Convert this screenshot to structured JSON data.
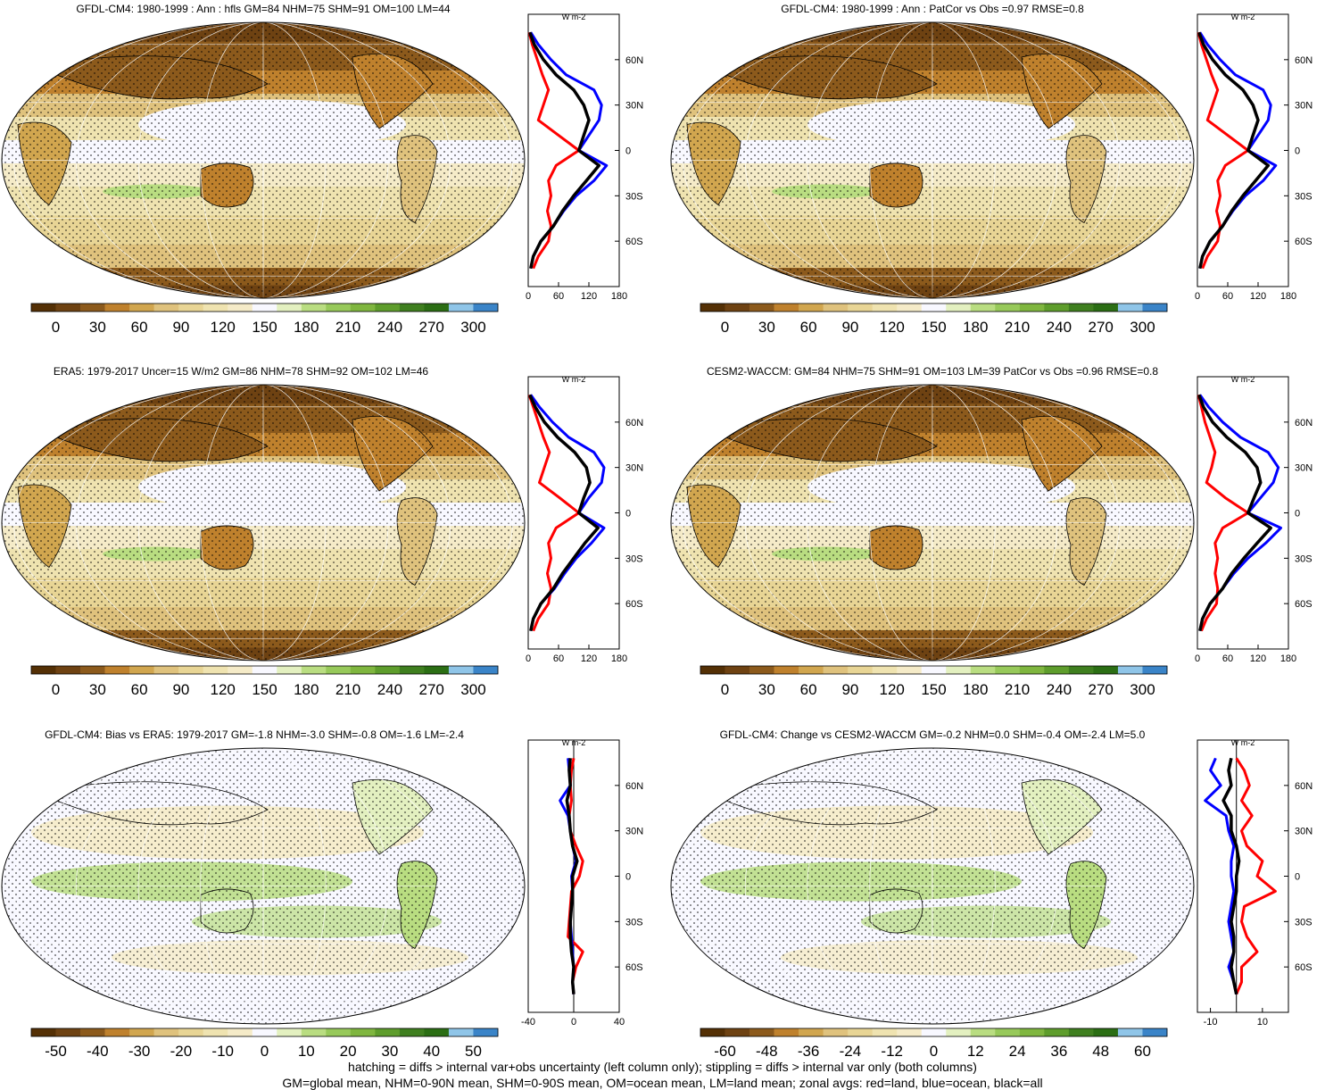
{
  "footer": {
    "line1": "hatching = diffs > internal var+obs uncertainty (left column only); stippling = diffs > internal var only (both columns)",
    "line2": "GM=global mean, NHM=0-90N mean, SHM=0-90S mean, OM=ocean mean, LM=land mean; zonal avgs: red=land, blue=ocean, black=all"
  },
  "colors": {
    "land": "#ff0000",
    "ocean": "#0000ff",
    "all": "#000000",
    "palette": [
      "#543005",
      "#6e4212",
      "#8c5a1c",
      "#bf812d",
      "#d1a64f",
      "#dfc27d",
      "#e8d595",
      "#efe3b0",
      "#f5ebc8",
      "#f8f8ff",
      "#e3f0c0",
      "#b9dd81",
      "#97c95a",
      "#7fb63f",
      "#5e9d2c",
      "#3f7f1f",
      "#2b6e14",
      "#8fc5e8",
      "#3a84c8"
    ]
  },
  "chart_data": [
    {
      "type": "heatmap",
      "title": "GFDL-CM4: 1980-1999 : Ann : hfls GM=84 NHM=75 SHM=91 OM=100 LM=44",
      "colorbar_ticks": [
        "0",
        "30",
        "60",
        "90",
        "120",
        "150",
        "180",
        "210",
        "240",
        "270",
        "300"
      ],
      "profile": {
        "type": "line",
        "unit": "W m-2",
        "xlim": [
          0,
          180
        ],
        "xticks": [
          "0",
          "60",
          "120",
          "180"
        ],
        "ylim": [
          -90,
          90
        ],
        "yticks": [
          "60N",
          "30N",
          "0",
          "30S",
          "60S"
        ],
        "lat": [
          78,
          70,
          60,
          50,
          40,
          30,
          20,
          10,
          0,
          -10,
          -20,
          -30,
          -40,
          -50,
          -60,
          -70,
          -78
        ],
        "series": [
          {
            "key": "land",
            "values": [
              2,
              8,
              18,
              28,
              40,
              30,
              20,
              60,
              100,
              55,
              40,
              45,
              38,
              45,
              40,
              20,
              10
            ]
          },
          {
            "key": "ocean",
            "values": [
              5,
              20,
              45,
              75,
              130,
              145,
              140,
              120,
              100,
              155,
              130,
              95,
              70,
              50,
              25,
              10,
              5
            ]
          },
          {
            "key": "all",
            "values": [
              3,
              12,
              30,
              55,
              90,
              110,
              120,
              110,
              100,
              140,
              115,
              90,
              68,
              50,
              25,
              10,
              5
            ]
          }
        ]
      }
    },
    {
      "type": "heatmap",
      "title": "GFDL-CM4: 1980-1999 : Ann : PatCor vs Obs =0.97 RMSE=0.8",
      "colorbar_ticks": [
        "0",
        "30",
        "60",
        "90",
        "120",
        "150",
        "180",
        "210",
        "240",
        "270",
        "300"
      ],
      "profile": {
        "type": "line",
        "unit": "W m-2",
        "xlim": [
          0,
          180
        ],
        "xticks": [
          "0",
          "60",
          "120",
          "180"
        ],
        "ylim": [
          -90,
          90
        ],
        "yticks": [
          "60N",
          "30N",
          "0",
          "30S",
          "60S"
        ],
        "lat": [
          78,
          70,
          60,
          50,
          40,
          30,
          20,
          10,
          0,
          -10,
          -20,
          -30,
          -40,
          -50,
          -60,
          -70,
          -78
        ],
        "series": [
          {
            "key": "land",
            "values": [
              2,
              8,
              18,
              28,
              40,
              30,
              20,
              60,
              100,
              55,
              40,
              45,
              38,
              45,
              40,
              20,
              10
            ]
          },
          {
            "key": "ocean",
            "values": [
              5,
              20,
              45,
              75,
              130,
              145,
              140,
              120,
              100,
              155,
              130,
              95,
              70,
              50,
              25,
              10,
              5
            ]
          },
          {
            "key": "all",
            "values": [
              3,
              12,
              30,
              55,
              90,
              110,
              120,
              110,
              100,
              140,
              115,
              90,
              68,
              50,
              25,
              10,
              5
            ]
          }
        ]
      }
    },
    {
      "type": "heatmap",
      "title": "ERA5: 1979-2017 Uncer=15 W/m2 GM=86 NHM=78 SHM=92 OM=102 LM=46",
      "colorbar_ticks": [
        "0",
        "30",
        "60",
        "90",
        "120",
        "150",
        "180",
        "210",
        "240",
        "270",
        "300"
      ],
      "profile": {
        "type": "line",
        "unit": "W m-2",
        "xlim": [
          0,
          180
        ],
        "xticks": [
          "0",
          "60",
          "120",
          "180"
        ],
        "ylim": [
          -90,
          90
        ],
        "yticks": [
          "60N",
          "30N",
          "0",
          "30S",
          "60S"
        ],
        "lat": [
          78,
          70,
          60,
          50,
          40,
          30,
          20,
          10,
          0,
          -10,
          -20,
          -30,
          -40,
          -50,
          -60,
          -70,
          -78
        ],
        "series": [
          {
            "key": "land",
            "values": [
              2,
              10,
              20,
              30,
              42,
              32,
              22,
              62,
              100,
              55,
              40,
              45,
              38,
              45,
              40,
              20,
              10
            ]
          },
          {
            "key": "ocean",
            "values": [
              5,
              22,
              48,
              80,
              130,
              150,
              145,
              120,
              100,
              150,
              125,
              95,
              72,
              52,
              25,
              10,
              5
            ]
          },
          {
            "key": "all",
            "values": [
              3,
              14,
              32,
              58,
              92,
              115,
              122,
              110,
              100,
              138,
              112,
              90,
              68,
              50,
              25,
              10,
              5
            ]
          }
        ]
      }
    },
    {
      "type": "heatmap",
      "title": "CESM2-WACCM: GM=84 NHM=75 SHM=91 OM=103 LM=39 PatCor vs Obs =0.96 RMSE=0.8",
      "colorbar_ticks": [
        "0",
        "30",
        "60",
        "90",
        "120",
        "150",
        "180",
        "210",
        "240",
        "270",
        "300"
      ],
      "profile": {
        "type": "line",
        "unit": "W m-2",
        "xlim": [
          0,
          180
        ],
        "xticks": [
          "0",
          "60",
          "120",
          "180"
        ],
        "ylim": [
          -90,
          90
        ],
        "yticks": [
          "60N",
          "30N",
          "0",
          "30S",
          "60S"
        ],
        "lat": [
          78,
          70,
          60,
          50,
          40,
          30,
          20,
          10,
          0,
          -10,
          -20,
          -30,
          -40,
          -50,
          -60,
          -70,
          -78
        ],
        "series": [
          {
            "key": "land",
            "values": [
              2,
              8,
              15,
              25,
              35,
              28,
              18,
              55,
              100,
              50,
              35,
              40,
              35,
              40,
              38,
              18,
              8
            ]
          },
          {
            "key": "ocean",
            "values": [
              5,
              22,
              50,
              85,
              140,
              160,
              150,
              125,
              100,
              165,
              135,
              100,
              72,
              50,
              25,
              10,
              5
            ]
          },
          {
            "key": "all",
            "values": [
              3,
              12,
              30,
              58,
              95,
              118,
              125,
              112,
              100,
              145,
              118,
              92,
              68,
              50,
              25,
              10,
              5
            ]
          }
        ]
      }
    },
    {
      "type": "heatmap",
      "title": "GFDL-CM4: Bias vs ERA5: 1979-2017 GM=-1.8 NHM=-3.0 SHM=-0.8 OM=-1.6 LM=-2.4",
      "colorbar_ticks": [
        "-50",
        "-40",
        "-30",
        "-20",
        "-10",
        "0",
        "10",
        "20",
        "30",
        "40",
        "50"
      ],
      "profile": {
        "type": "line",
        "unit": "W m-2",
        "xlim": [
          -40,
          40
        ],
        "xticks": [
          "-40",
          "0",
          "40"
        ],
        "ylim": [
          -90,
          90
        ],
        "yticks": [
          "60N",
          "30N",
          "0",
          "30S",
          "60S"
        ],
        "lat": [
          78,
          70,
          60,
          50,
          40,
          30,
          20,
          10,
          0,
          -10,
          -20,
          -30,
          -40,
          -50,
          -60,
          -70,
          -78
        ],
        "series": [
          {
            "key": "land",
            "values": [
              0,
              -2,
              -3,
              -2,
              -4,
              -3,
              2,
              8,
              5,
              -2,
              -3,
              -4,
              -5,
              8,
              2,
              -1,
              0
            ]
          },
          {
            "key": "ocean",
            "values": [
              -5,
              -4,
              -3,
              -12,
              -5,
              -3,
              -1,
              2,
              -2,
              -1,
              -2,
              -3,
              -2,
              -1,
              0,
              -1,
              0
            ]
          },
          {
            "key": "all",
            "values": [
              -3,
              -4,
              -3,
              -6,
              -4,
              -3,
              -1,
              3,
              -1,
              -1,
              -2,
              -3,
              -3,
              -2,
              0,
              -1,
              0
            ]
          }
        ]
      }
    },
    {
      "type": "heatmap",
      "title": "GFDL-CM4: Change vs CESM2-WACCM GM=-0.2 NHM=0.0 SHM=-0.4 OM=-2.4 LM=5.0",
      "colorbar_ticks": [
        "-60",
        "-48",
        "-36",
        "-24",
        "-12",
        "0",
        "12",
        "24",
        "36",
        "48",
        "60"
      ],
      "profile": {
        "type": "line",
        "unit": "W m-2",
        "xlim": [
          -15,
          20
        ],
        "xticks": [
          "-10",
          "10"
        ],
        "ylim": [
          -90,
          90
        ],
        "yticks": [
          "60N",
          "30N",
          "0",
          "30S",
          "60S"
        ],
        "lat": [
          78,
          70,
          60,
          50,
          40,
          30,
          20,
          10,
          0,
          -10,
          -20,
          -30,
          -40,
          -50,
          -60,
          -70,
          -78
        ],
        "series": [
          {
            "key": "land",
            "values": [
              0,
              3,
              5,
              2,
              6,
              2,
              4,
              10,
              8,
              15,
              3,
              2,
              4,
              8,
              2,
              2,
              0
            ]
          },
          {
            "key": "ocean",
            "values": [
              -8,
              -10,
              -6,
              -12,
              -4,
              -3,
              -1,
              -2,
              -2,
              -1,
              -2,
              -3,
              -2,
              -1,
              -3,
              -1,
              0
            ]
          },
          {
            "key": "all",
            "values": [
              -2,
              -3,
              -2,
              -5,
              -2,
              -2,
              0,
              1,
              0,
              0,
              -1,
              -2,
              -1,
              -1,
              -2,
              -1,
              0
            ]
          }
        ]
      }
    }
  ]
}
